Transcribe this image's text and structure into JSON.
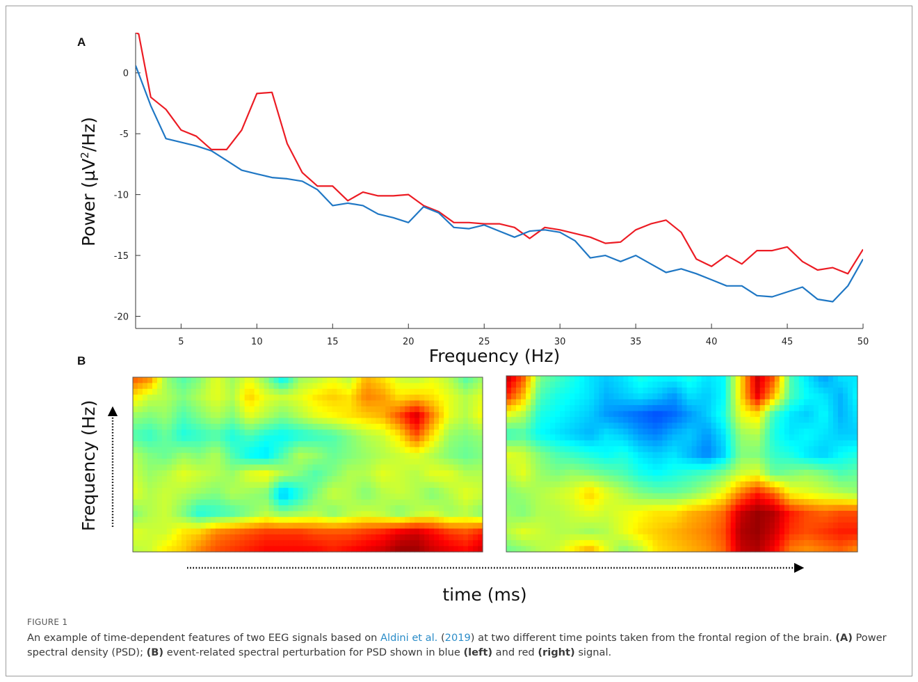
{
  "figure": {
    "label": "FIGURE 1",
    "caption": {
      "t1": "An example of time-dependent features of two EEG signals based on ",
      "link_authors": "Aldini et al.",
      "t2": " (",
      "link_year": "2019",
      "t3": ") at two different time points taken from the frontal region of the brain. ",
      "a_label": "(A)",
      "t4": " Power spectral density (PSD); ",
      "b_label": "(B)",
      "t5": " event-related spectral perturbation for PSD shown in blue ",
      "left_label": "(left)",
      "t6": " and red ",
      "right_label": "(right)",
      "t7": "  signal."
    }
  },
  "panel_a": {
    "letter": "A",
    "chart_data": {
      "type": "line",
      "title": "",
      "xlabel": "Frequency (Hz)",
      "ylabel": "Power (µV²/Hz",
      "ylabel_sup": "2",
      "xlim": [
        2,
        50
      ],
      "ylim": [
        -21,
        3.3
      ],
      "x_ticks": [
        5,
        10,
        15,
        20,
        25,
        30,
        35,
        40,
        45,
        50
      ],
      "y_ticks": [
        0,
        -5,
        -10,
        -15,
        -20
      ],
      "grid": false,
      "series": [
        {
          "color": "#ec1c24",
          "points": [
            [
              2,
              3.3
            ],
            [
              2.2,
              3.2
            ],
            [
              3,
              -2.0
            ],
            [
              4,
              -3.0
            ],
            [
              5,
              -4.7
            ],
            [
              6,
              -5.2
            ],
            [
              7,
              -6.3
            ],
            [
              8,
              -6.3
            ],
            [
              9,
              -4.7
            ],
            [
              10,
              -1.7
            ],
            [
              11,
              -1.6
            ],
            [
              12,
              -5.8
            ],
            [
              13,
              -8.2
            ],
            [
              14,
              -9.3
            ],
            [
              15,
              -9.3
            ],
            [
              16,
              -10.5
            ],
            [
              17,
              -9.8
            ],
            [
              18,
              -10.1
            ],
            [
              19,
              -10.1
            ],
            [
              20,
              -10.0
            ],
            [
              21,
              -10.9
            ],
            [
              22,
              -11.4
            ],
            [
              23,
              -12.3
            ],
            [
              24,
              -12.3
            ],
            [
              25,
              -12.4
            ],
            [
              26,
              -12.4
            ],
            [
              27,
              -12.7
            ],
            [
              28,
              -13.6
            ],
            [
              29,
              -12.7
            ],
            [
              30,
              -12.9
            ],
            [
              31,
              -13.2
            ],
            [
              32,
              -13.5
            ],
            [
              33,
              -14.0
            ],
            [
              34,
              -13.9
            ],
            [
              35,
              -12.9
            ],
            [
              36,
              -12.4
            ],
            [
              37,
              -12.1
            ],
            [
              38,
              -13.1
            ],
            [
              39,
              -15.3
            ],
            [
              40,
              -15.9
            ],
            [
              41,
              -15.0
            ],
            [
              42,
              -15.7
            ],
            [
              43,
              -14.6
            ],
            [
              44,
              -14.6
            ],
            [
              45,
              -14.3
            ],
            [
              46,
              -15.5
            ],
            [
              47,
              -16.2
            ],
            [
              48,
              -16.0
            ],
            [
              49,
              -16.5
            ],
            [
              50,
              -14.5
            ]
          ]
        },
        {
          "color": "#1f77c4",
          "points": [
            [
              2,
              0.6
            ],
            [
              3,
              -2.7
            ],
            [
              4,
              -5.4
            ],
            [
              5,
              -5.7
            ],
            [
              6,
              -6.0
            ],
            [
              7,
              -6.4
            ],
            [
              8,
              -7.2
            ],
            [
              9,
              -8.0
            ],
            [
              10,
              -8.3
            ],
            [
              11,
              -8.6
            ],
            [
              12,
              -8.7
            ],
            [
              13,
              -8.9
            ],
            [
              14,
              -9.6
            ],
            [
              15,
              -10.9
            ],
            [
              16,
              -10.7
            ],
            [
              17,
              -10.9
            ],
            [
              18,
              -11.6
            ],
            [
              19,
              -11.9
            ],
            [
              20,
              -12.3
            ],
            [
              21,
              -11.0
            ],
            [
              22,
              -11.5
            ],
            [
              23,
              -12.7
            ],
            [
              24,
              -12.8
            ],
            [
              25,
              -12.5
            ],
            [
              26,
              -13.0
            ],
            [
              27,
              -13.5
            ],
            [
              28,
              -13.0
            ],
            [
              29,
              -12.9
            ],
            [
              30,
              -13.1
            ],
            [
              31,
              -13.8
            ],
            [
              32,
              -15.2
            ],
            [
              33,
              -15.0
            ],
            [
              34,
              -15.5
            ],
            [
              35,
              -15.0
            ],
            [
              36,
              -15.7
            ],
            [
              37,
              -16.4
            ],
            [
              38,
              -16.1
            ],
            [
              39,
              -16.5
            ],
            [
              40,
              -17.0
            ],
            [
              41,
              -17.5
            ],
            [
              42,
              -17.5
            ],
            [
              43,
              -18.3
            ],
            [
              44,
              -18.4
            ],
            [
              45,
              -18.0
            ],
            [
              46,
              -17.6
            ],
            [
              47,
              -18.6
            ],
            [
              48,
              -18.8
            ],
            [
              49,
              -17.5
            ],
            [
              50,
              -15.3
            ]
          ]
        }
      ]
    }
  },
  "panel_b": {
    "letter": "B",
    "chart_data": {
      "type": "heatmap",
      "ylabel": "Frequency (Hz)",
      "xlabel": "time (ms)",
      "colormap": "jet",
      "value_range": [
        -1,
        1
      ],
      "rows": 10,
      "cols": 22,
      "left_grid": [
        [
          0.6,
          0.5,
          0.05,
          -0.1,
          0.0,
          0.2,
          0.05,
          0.2,
          0.0,
          -0.3,
          0.05,
          0.1,
          0.2,
          0.1,
          0.4,
          0.3,
          0.15,
          0.1,
          0.2,
          0.1,
          -0.1,
          0.05
        ],
        [
          0.3,
          0.15,
          0.1,
          0.0,
          0.1,
          0.2,
          0.1,
          0.35,
          0.2,
          0.15,
          0.2,
          0.3,
          0.35,
          0.3,
          0.5,
          0.45,
          0.3,
          0.35,
          0.3,
          0.2,
          0.1,
          0.2
        ],
        [
          0.05,
          0.0,
          0.05,
          -0.1,
          0.0,
          0.1,
          0.0,
          0.2,
          0.1,
          0.0,
          0.1,
          0.2,
          0.25,
          0.3,
          0.35,
          0.4,
          0.6,
          0.85,
          0.5,
          0.2,
          0.1,
          0.25
        ],
        [
          -0.1,
          -0.15,
          -0.05,
          -0.2,
          -0.15,
          -0.1,
          -0.2,
          -0.1,
          -0.2,
          -0.25,
          -0.2,
          -0.15,
          -0.1,
          0.0,
          0.1,
          0.15,
          0.3,
          0.6,
          0.3,
          0.05,
          0.0,
          0.05
        ],
        [
          0.1,
          0.0,
          -0.05,
          0.05,
          0.0,
          0.1,
          -0.1,
          -0.25,
          -0.3,
          -0.1,
          0.1,
          0.05,
          -0.05,
          0.0,
          0.05,
          0.1,
          0.15,
          0.2,
          0.1,
          0.0,
          -0.05,
          0.0
        ],
        [
          0.15,
          0.05,
          0.1,
          0.2,
          0.15,
          0.1,
          0.05,
          0.2,
          0.25,
          0.1,
          0.0,
          -0.1,
          0.0,
          0.1,
          0.1,
          0.2,
          0.15,
          0.1,
          0.2,
          0.2,
          0.1,
          0.1
        ],
        [
          0.2,
          0.1,
          0.15,
          0.1,
          0.05,
          0.0,
          0.1,
          0.05,
          0.0,
          -0.4,
          -0.2,
          0.0,
          0.15,
          0.1,
          0.0,
          0.1,
          0.15,
          0.1,
          0.0,
          0.1,
          0.2,
          0.15
        ],
        [
          0.0,
          0.1,
          0.15,
          0.0,
          -0.2,
          -0.15,
          -0.1,
          0.0,
          0.1,
          0.0,
          0.05,
          0.1,
          0.0,
          0.1,
          0.15,
          0.1,
          0.0,
          0.1,
          0.15,
          0.05,
          0.1,
          0.0
        ],
        [
          0.2,
          0.15,
          0.15,
          0.3,
          0.35,
          0.5,
          0.55,
          0.6,
          0.65,
          0.65,
          0.65,
          0.6,
          0.6,
          0.6,
          0.65,
          0.7,
          0.8,
          0.85,
          0.75,
          0.65,
          0.6,
          0.7
        ],
        [
          0.1,
          0.15,
          0.3,
          0.35,
          0.5,
          0.6,
          0.65,
          0.7,
          0.75,
          0.75,
          0.75,
          0.75,
          0.7,
          0.75,
          0.8,
          0.85,
          0.95,
          0.95,
          0.85,
          0.8,
          0.75,
          0.85
        ]
      ],
      "right_grid": [
        [
          0.9,
          0.6,
          0.0,
          -0.1,
          -0.2,
          -0.3,
          -0.35,
          -0.3,
          -0.2,
          -0.25,
          -0.25,
          -0.2,
          -0.3,
          -0.25,
          0.3,
          0.85,
          0.6,
          -0.1,
          -0.3,
          -0.45,
          -0.3,
          -0.3
        ],
        [
          0.7,
          0.4,
          -0.1,
          -0.2,
          -0.25,
          -0.3,
          -0.4,
          -0.35,
          -0.3,
          -0.35,
          -0.45,
          -0.3,
          -0.35,
          -0.25,
          0.3,
          0.8,
          0.4,
          -0.1,
          -0.25,
          -0.3,
          -0.4,
          -0.25
        ],
        [
          0.2,
          0.1,
          -0.2,
          -0.25,
          -0.3,
          -0.35,
          -0.45,
          -0.5,
          -0.55,
          -0.6,
          -0.55,
          -0.45,
          -0.35,
          -0.2,
          0.2,
          0.3,
          -0.15,
          -0.3,
          -0.35,
          -0.25,
          -0.4,
          -0.3
        ],
        [
          -0.15,
          -0.1,
          -0.25,
          -0.3,
          -0.35,
          -0.4,
          -0.3,
          -0.35,
          -0.45,
          -0.5,
          -0.4,
          -0.35,
          -0.45,
          -0.3,
          0.05,
          0.1,
          -0.2,
          -0.3,
          -0.25,
          -0.3,
          -0.35,
          -0.35
        ],
        [
          0.2,
          0.15,
          0.0,
          -0.1,
          -0.15,
          -0.2,
          -0.25,
          -0.2,
          -0.3,
          -0.35,
          -0.3,
          -0.4,
          -0.5,
          -0.35,
          0.0,
          0.0,
          -0.15,
          -0.2,
          -0.3,
          -0.35,
          -0.25,
          -0.2
        ],
        [
          0.1,
          0.2,
          0.05,
          0.0,
          0.05,
          0.0,
          -0.05,
          -0.1,
          -0.2,
          -0.25,
          -0.2,
          -0.15,
          -0.1,
          0.0,
          0.15,
          0.2,
          -0.05,
          0.0,
          0.05,
          0.0,
          -0.1,
          -0.05
        ],
        [
          0.0,
          0.05,
          0.1,
          0.15,
          0.2,
          0.35,
          0.2,
          0.1,
          0.0,
          -0.05,
          -0.05,
          0.0,
          0.1,
          0.25,
          0.5,
          0.7,
          0.55,
          0.25,
          0.2,
          0.15,
          0.1,
          0.05
        ],
        [
          0.05,
          0.0,
          0.1,
          0.1,
          0.15,
          0.2,
          0.15,
          0.2,
          0.25,
          0.3,
          0.3,
          0.4,
          0.45,
          0.55,
          0.85,
          0.95,
          0.9,
          0.7,
          0.6,
          0.55,
          0.6,
          0.6
        ],
        [
          0.1,
          0.2,
          0.15,
          0.1,
          0.1,
          0.05,
          0.1,
          0.2,
          0.3,
          0.35,
          0.4,
          0.45,
          0.5,
          0.6,
          0.9,
          0.95,
          0.85,
          0.65,
          0.6,
          0.65,
          0.7,
          0.7
        ],
        [
          -0.05,
          0.0,
          0.1,
          0.15,
          0.3,
          0.45,
          0.2,
          0.0,
          0.1,
          0.3,
          0.35,
          0.4,
          0.45,
          0.55,
          0.85,
          0.9,
          0.75,
          0.5,
          0.45,
          0.5,
          0.55,
          0.45
        ]
      ]
    }
  }
}
